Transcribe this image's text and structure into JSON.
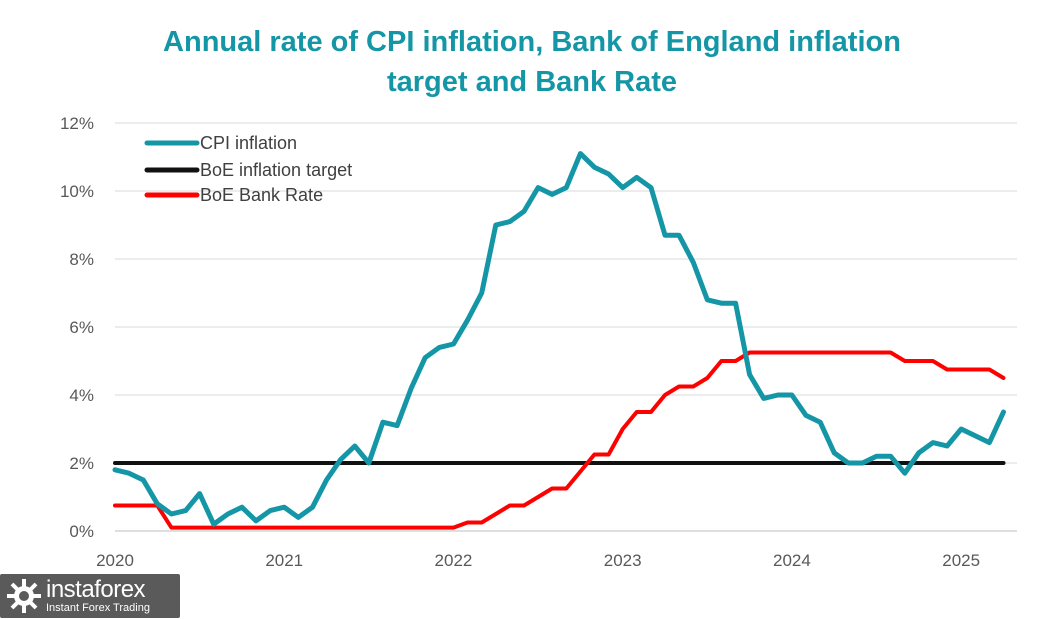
{
  "title": "Annual rate of CPI inflation, Bank of England inflation target and Bank Rate",
  "title_lines": [
    "Annual rate of CPI inflation, Bank of England inflation",
    "target and Bank Rate"
  ],
  "title_color": "#1496A6",
  "watermark": {
    "name": "instaforex",
    "tagline": "Instant Forex Trading",
    "logo_icon": "gear-logo-icon"
  },
  "chart_data": {
    "type": "line",
    "title": "Annual rate of CPI inflation, Bank of England inflation target and Bank Rate",
    "xlabel": "",
    "ylabel": "",
    "xlim": [
      2020.0,
      2025.33
    ],
    "ylim": [
      0,
      12
    ],
    "x_ticks": [
      2020,
      2021,
      2022,
      2023,
      2024,
      2025
    ],
    "x_tick_labels": [
      "2020",
      "2021",
      "2022",
      "2023",
      "2024",
      "2025"
    ],
    "y_ticks": [
      0,
      2,
      4,
      6,
      8,
      10,
      12
    ],
    "y_tick_labels": [
      "0%",
      "2%",
      "4%",
      "6%",
      "8%",
      "10%",
      "12%"
    ],
    "grid": "horizontal",
    "legend_position": "top-left",
    "series": [
      {
        "name": "CPI inflation",
        "color": "#1496A6",
        "x": [
          2020.0,
          2020.083,
          2020.167,
          2020.25,
          2020.333,
          2020.417,
          2020.5,
          2020.583,
          2020.667,
          2020.75,
          2020.833,
          2020.917,
          2021.0,
          2021.083,
          2021.167,
          2021.25,
          2021.333,
          2021.417,
          2021.5,
          2021.583,
          2021.667,
          2021.75,
          2021.833,
          2021.917,
          2022.0,
          2022.083,
          2022.167,
          2022.25,
          2022.333,
          2022.417,
          2022.5,
          2022.583,
          2022.667,
          2022.75,
          2022.833,
          2022.917,
          2023.0,
          2023.083,
          2023.167,
          2023.25,
          2023.333,
          2023.417,
          2023.5,
          2023.583,
          2023.667,
          2023.75,
          2023.833,
          2023.917,
          2024.0,
          2024.083,
          2024.167,
          2024.25,
          2024.333,
          2024.417,
          2024.5,
          2024.583,
          2024.667,
          2024.75,
          2024.833,
          2024.917,
          2025.0,
          2025.083,
          2025.167,
          2025.25
        ],
        "values": [
          1.8,
          1.7,
          1.5,
          0.8,
          0.5,
          0.6,
          1.1,
          0.2,
          0.5,
          0.7,
          0.3,
          0.6,
          0.7,
          0.4,
          0.7,
          1.5,
          2.1,
          2.5,
          2.0,
          3.2,
          3.1,
          4.2,
          5.1,
          5.4,
          5.5,
          6.2,
          7.0,
          9.0,
          9.1,
          9.4,
          10.1,
          9.9,
          10.1,
          11.1,
          10.7,
          10.5,
          10.1,
          10.4,
          10.1,
          8.7,
          8.7,
          7.9,
          6.8,
          6.7,
          6.7,
          4.6,
          3.9,
          4.0,
          4.0,
          3.4,
          3.2,
          2.3,
          2.0,
          2.0,
          2.2,
          2.2,
          1.7,
          2.3,
          2.6,
          2.5,
          3.0,
          2.8,
          2.6,
          3.5
        ]
      },
      {
        "name": "BoE inflation target",
        "color": "#111111",
        "x": [
          2020.0,
          2025.25
        ],
        "values": [
          2.0,
          2.0
        ]
      },
      {
        "name": "BoE Bank Rate",
        "color": "#FF0000",
        "x": [
          2020.0,
          2020.083,
          2020.167,
          2020.25,
          2020.333,
          2022.0,
          2022.083,
          2022.167,
          2022.25,
          2022.333,
          2022.417,
          2022.5,
          2022.583,
          2022.667,
          2022.75,
          2022.833,
          2022.917,
          2023.0,
          2023.083,
          2023.167,
          2023.25,
          2023.333,
          2023.417,
          2023.5,
          2023.583,
          2023.667,
          2023.75,
          2024.5,
          2024.583,
          2024.667,
          2024.75,
          2024.833,
          2024.917,
          2025.0,
          2025.083,
          2025.167,
          2025.25
        ],
        "values": [
          0.75,
          0.75,
          0.75,
          0.75,
          0.1,
          0.1,
          0.25,
          0.25,
          0.5,
          0.75,
          0.75,
          1.0,
          1.25,
          1.25,
          1.75,
          2.25,
          2.25,
          3.0,
          3.5,
          3.5,
          4.0,
          4.25,
          4.25,
          4.5,
          5.0,
          5.0,
          5.25,
          5.25,
          5.25,
          5.0,
          5.0,
          5.0,
          4.75,
          4.75,
          4.75,
          4.75,
          4.5
        ]
      }
    ]
  }
}
